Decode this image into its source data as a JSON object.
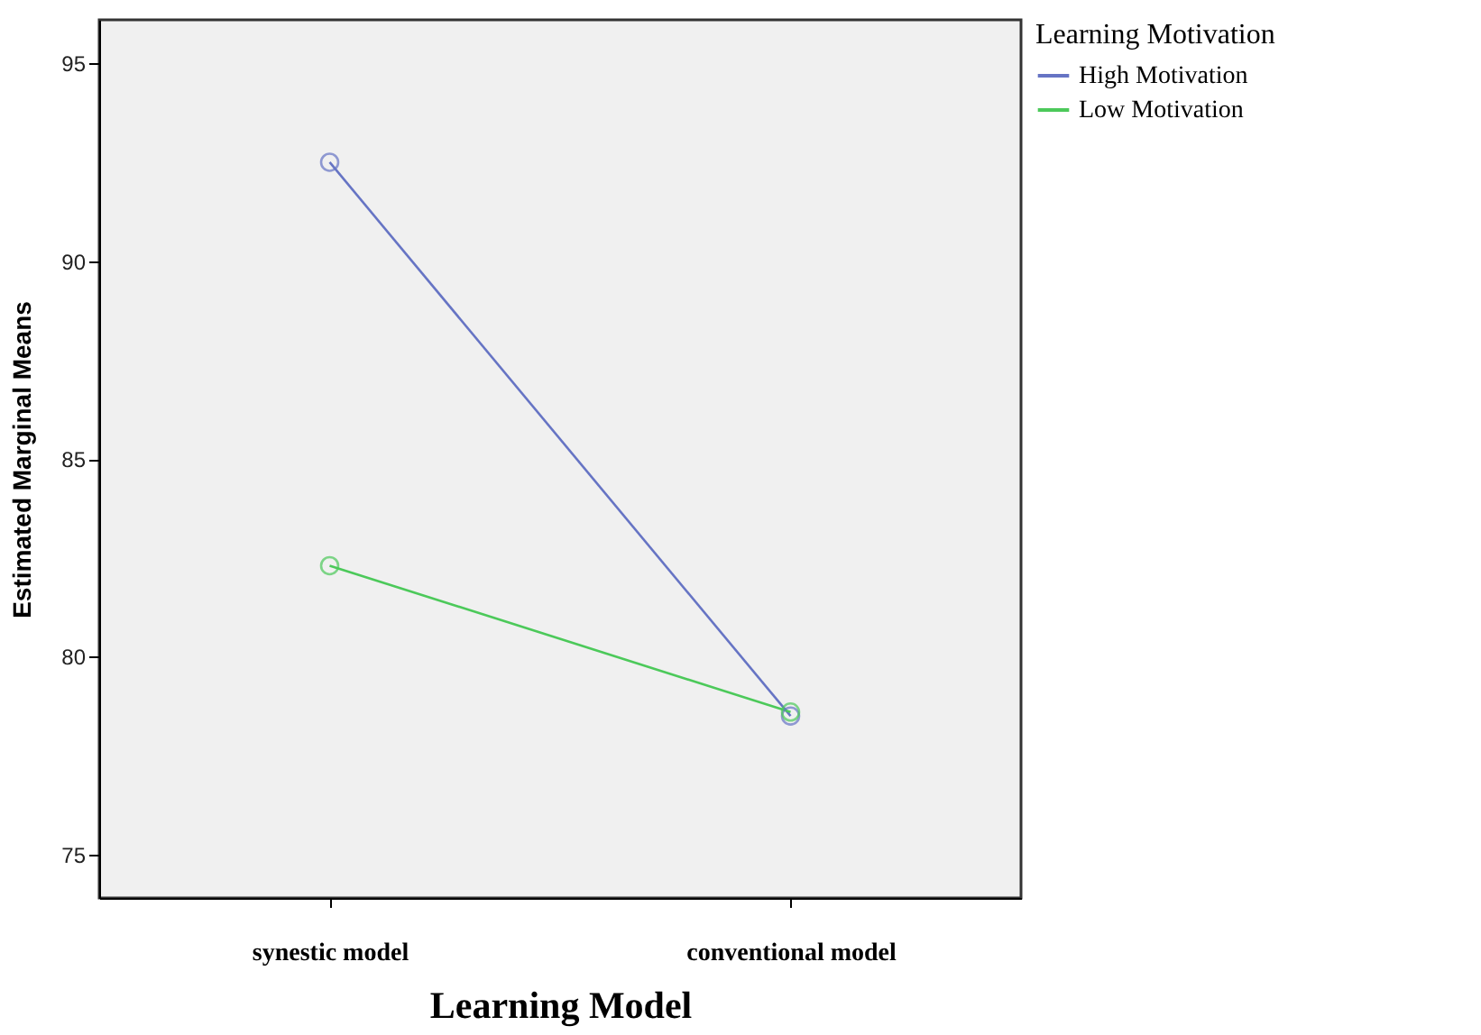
{
  "chart_data": {
    "type": "line",
    "xlabel": "Learning Model",
    "ylabel": "Estimated Marginal Means",
    "legend_title": "Learning Motivation",
    "categories": [
      "synestic model",
      "conventional model"
    ],
    "series": [
      {
        "name": "High Motivation",
        "color": "#6674c4",
        "values": [
          92.5,
          78.5
        ]
      },
      {
        "name": "Low Motivation",
        "color": "#4cc95a",
        "values": [
          82.3,
          78.6
        ]
      }
    ],
    "ylim": [
      73.9,
      96.1
    ],
    "yticks": [
      75,
      80,
      85,
      90,
      95
    ],
    "grid": false,
    "legend": "top right",
    "marker": "circle"
  }
}
